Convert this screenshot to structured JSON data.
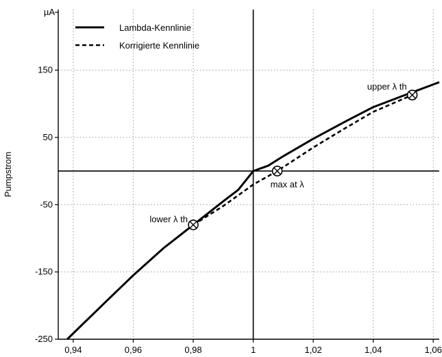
{
  "chart_data": {
    "type": "line",
    "title": "",
    "xlabel": "",
    "ylabel": "Pumpstrom",
    "y_unit": "µA",
    "xlim": [
      0.935,
      1.062
    ],
    "ylim": [
      -250,
      240
    ],
    "x_ticks": [
      0.94,
      0.96,
      0.98,
      1.0,
      1.02,
      1.04,
      1.06
    ],
    "x_tick_labels": [
      "0,94",
      "0,96",
      "0,98",
      "1",
      "1,02",
      "1,04",
      "1,06"
    ],
    "y_ticks": [
      -250,
      -150,
      -50,
      50,
      150
    ],
    "y_tick_labels": [
      "-250",
      "-150",
      "-50",
      "50",
      "150"
    ],
    "grid": true,
    "reference_lines": {
      "x": 1.0,
      "y": 0
    },
    "legend_position": "top-left",
    "series": [
      {
        "name": "Lambda-Kennlinie",
        "style": "solid",
        "x": [
          0.938,
          0.95,
          0.96,
          0.97,
          0.98,
          0.99,
          0.995,
          1.0,
          1.005,
          1.01,
          1.02,
          1.03,
          1.04,
          1.05,
          1.062
        ],
        "y": [
          -250,
          -198,
          -155,
          -115,
          -80,
          -45,
          -28,
          0,
          8,
          22,
          48,
          72,
          95,
          112,
          132
        ]
      },
      {
        "name": "Korrigierte Kennlinie",
        "style": "dashed",
        "x": [
          0.98,
          0.99,
          1.0,
          1.008,
          1.02,
          1.03,
          1.04,
          1.053
        ],
        "y": [
          -80,
          -52,
          -20,
          0,
          35,
          62,
          88,
          113
        ]
      }
    ],
    "annotations": [
      {
        "label": "upper λ th",
        "x": 1.053,
        "y": 113
      },
      {
        "label": "max at λ",
        "x": 1.008,
        "y": 0
      },
      {
        "label": "lower λ th",
        "x": 0.98,
        "y": -80
      }
    ],
    "colors": {
      "line": "#000000",
      "grid": "#9a9a9a"
    }
  }
}
